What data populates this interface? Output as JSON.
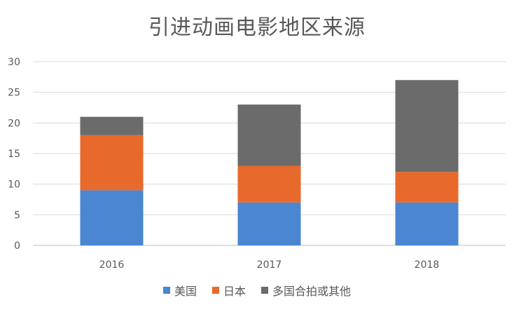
{
  "chart_data": {
    "type": "bar",
    "stacked": true,
    "title": "引进动画电影地区来源",
    "categories": [
      "2016",
      "2017",
      "2018"
    ],
    "series": [
      {
        "name": "美国",
        "color": "#4a86d1",
        "values": [
          9,
          7,
          7
        ]
      },
      {
        "name": "日本",
        "color": "#e8692c",
        "values": [
          9,
          6,
          5
        ]
      },
      {
        "name": "多国合拍或其他",
        "color": "#6b6b6b",
        "values": [
          3,
          10,
          15
        ]
      }
    ],
    "ylim": [
      0,
      30
    ],
    "yticks": [
      "0",
      "5",
      "10",
      "15",
      "20",
      "25",
      "30"
    ],
    "grid": true,
    "legend": "bottom"
  }
}
